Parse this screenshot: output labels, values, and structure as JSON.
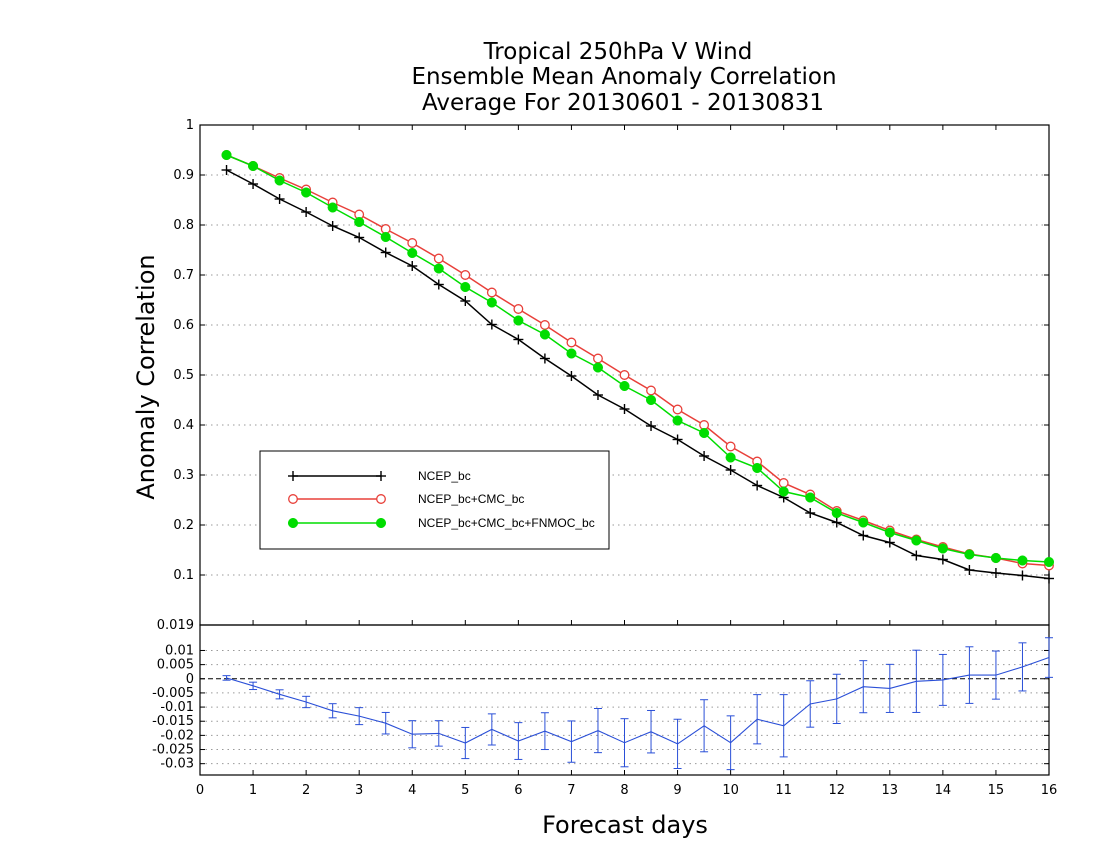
{
  "chart_data": [
    {
      "type": "line",
      "title": [
        "Tropical 250hPa V Wind",
        "Ensemble Mean Anomaly Correlation",
        "Average For 20130601 - 20130831"
      ],
      "xlabel": "Forecast days",
      "ylabel": "Anomaly Correlation",
      "xlim": [
        0,
        16
      ],
      "ylim": [
        0,
        1
      ],
      "grid": true,
      "legend_position": "center-left",
      "x": [
        0.5,
        1,
        1.5,
        2,
        2.5,
        3,
        3.5,
        4,
        4.5,
        5,
        5.5,
        6,
        6.5,
        7,
        7.5,
        8,
        8.5,
        9,
        9.5,
        10,
        10.5,
        11,
        11.5,
        12,
        12.5,
        13,
        13.5,
        14,
        14.5,
        15,
        15.5,
        16
      ],
      "x_ticks": [
        "0",
        "1",
        "2",
        "3",
        "4",
        "5",
        "6",
        "7",
        "8",
        "9",
        "10",
        "11",
        "12",
        "13",
        "14",
        "15",
        "16"
      ],
      "y_ticks": [
        "0.1",
        "0.2",
        "0.3",
        "0.4",
        "0.5",
        "0.6",
        "0.7",
        "0.8",
        "0.9",
        "1"
      ],
      "series": [
        {
          "name": "NCEP_bc",
          "color": "#000000",
          "marker": "plus",
          "values": [
            0.91,
            0.882,
            0.852,
            0.826,
            0.798,
            0.775,
            0.745,
            0.718,
            0.681,
            0.648,
            0.601,
            0.571,
            0.533,
            0.498,
            0.46,
            0.432,
            0.398,
            0.371,
            0.338,
            0.31,
            0.279,
            0.255,
            0.224,
            0.205,
            0.179,
            0.165,
            0.139,
            0.131,
            0.11,
            0.104,
            0.099,
            0.093
          ]
        },
        {
          "name": "NCEP_bc+CMC_bc",
          "color": "#e8403a",
          "marker": "open-circle",
          "values": [
            0.94,
            0.918,
            0.894,
            0.871,
            0.845,
            0.821,
            0.792,
            0.764,
            0.733,
            0.7,
            0.665,
            0.632,
            0.6,
            0.565,
            0.533,
            0.5,
            0.469,
            0.431,
            0.4,
            0.357,
            0.327,
            0.284,
            0.261,
            0.228,
            0.209,
            0.189,
            0.171,
            0.156,
            0.142,
            0.134,
            0.123,
            0.119
          ]
        },
        {
          "name": "NCEP_bc+CMC_bc+FNMOC_bc",
          "color": "#00dd00",
          "marker": "filled-circle",
          "values": [
            0.94,
            0.918,
            0.889,
            0.865,
            0.835,
            0.806,
            0.776,
            0.744,
            0.713,
            0.676,
            0.645,
            0.609,
            0.581,
            0.543,
            0.515,
            0.478,
            0.45,
            0.409,
            0.384,
            0.335,
            0.314,
            0.267,
            0.255,
            0.224,
            0.205,
            0.185,
            0.169,
            0.153,
            0.141,
            0.134,
            0.129,
            0.126
          ]
        }
      ]
    },
    {
      "type": "line",
      "title": "",
      "xlabel": "Forecast days",
      "ylabel": "",
      "xlim": [
        0,
        16
      ],
      "ylim": [
        -0.034,
        0.019
      ],
      "grid": true,
      "error_bars": true,
      "x": [
        0.5,
        1,
        1.5,
        2,
        2.5,
        3,
        3.5,
        4,
        4.5,
        5,
        5.5,
        6,
        6.5,
        7,
        7.5,
        8,
        8.5,
        9,
        9.5,
        10,
        10.5,
        11,
        11.5,
        12,
        12.5,
        13,
        13.5,
        14,
        14.5,
        15,
        15.5,
        16
      ],
      "y_ticks": [
        "0.019",
        "0.01",
        "0.005",
        "0",
        "-0.005",
        "-0.01",
        "-0.015",
        "-0.02",
        "-0.025",
        "-0.03"
      ],
      "y_tick_values": [
        0.019,
        0.01,
        0.005,
        0,
        -0.005,
        -0.01,
        -0.015,
        -0.02,
        -0.025,
        -0.03
      ],
      "series": [
        {
          "name": "",
          "color": "#2a4fd7",
          "values": [
            0.0003,
            -0.0025,
            -0.0055,
            -0.0082,
            -0.0113,
            -0.0132,
            -0.0157,
            -0.0196,
            -0.0193,
            -0.0227,
            -0.0179,
            -0.022,
            -0.0185,
            -0.0222,
            -0.0183,
            -0.0226,
            -0.0187,
            -0.023,
            -0.0166,
            -0.0226,
            -0.0143,
            -0.0166,
            -0.0089,
            -0.0071,
            -0.0028,
            -0.0034,
            -0.0009,
            -0.0004,
            0.0013,
            0.0013,
            0.0042,
            0.0075
          ],
          "errors": [
            0.0008,
            0.0013,
            0.0016,
            0.002,
            0.0025,
            0.003,
            0.0038,
            0.0048,
            0.0045,
            0.0055,
            0.0055,
            0.0065,
            0.0065,
            0.0073,
            0.0078,
            0.0085,
            0.0075,
            0.0087,
            0.0092,
            0.0095,
            0.0087,
            0.011,
            0.0082,
            0.0087,
            0.0092,
            0.0085,
            0.011,
            0.009,
            0.01,
            0.0085,
            0.0085,
            0.007
          ]
        }
      ]
    }
  ]
}
